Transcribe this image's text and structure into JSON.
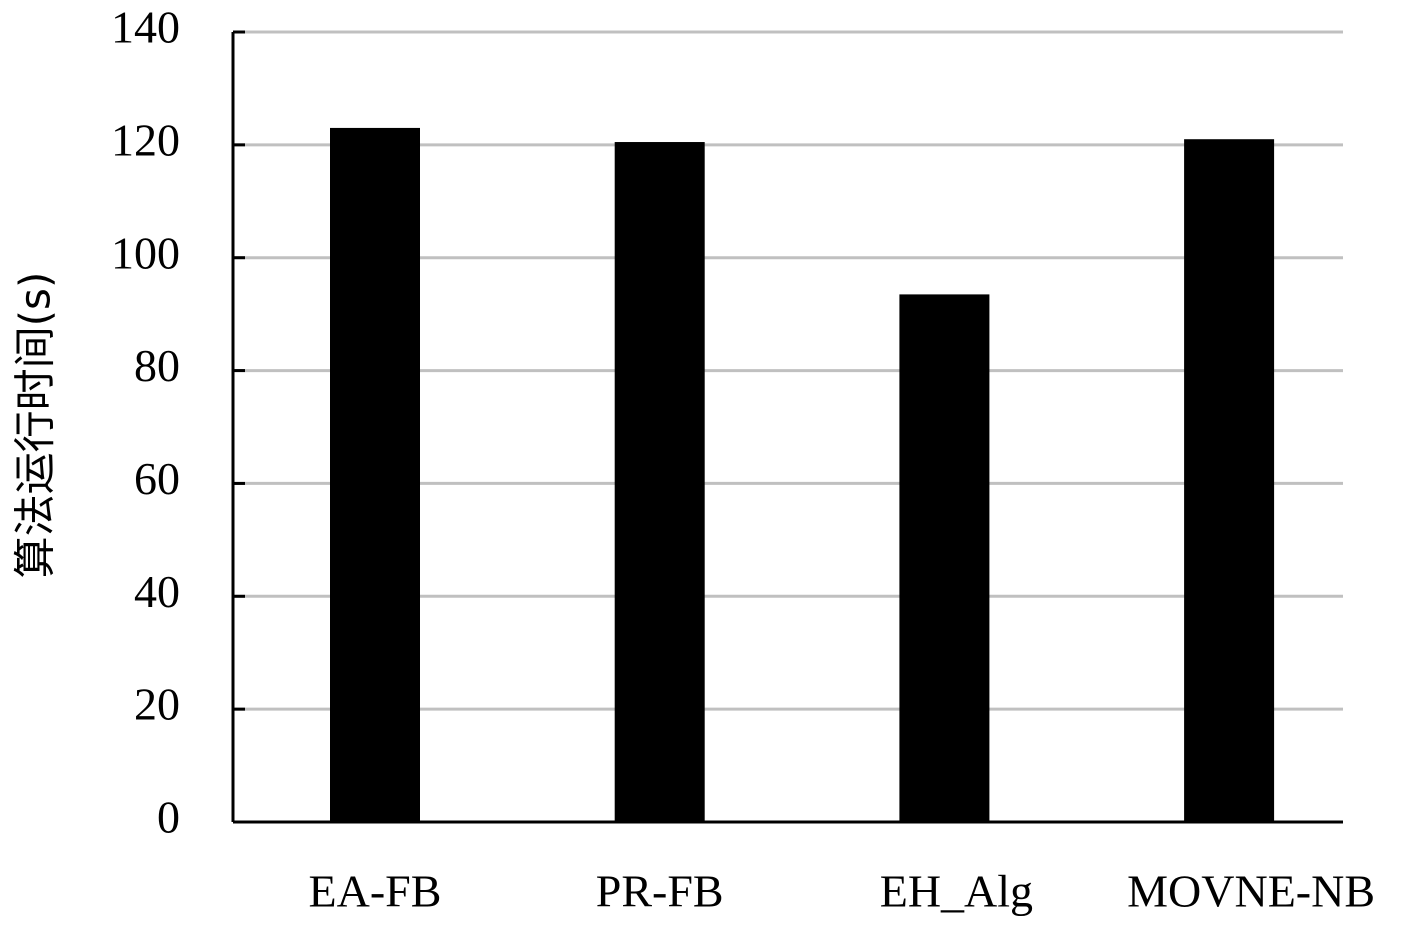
{
  "chart_data": {
    "type": "bar",
    "y_label": "算法运行时间(s)",
    "categories": [
      "EA-FB",
      "PR-FB",
      "EH_Alg",
      "MOVNE-NB"
    ],
    "values": [
      123,
      120.5,
      93.5,
      121
    ],
    "color": "#000000",
    "ylim": [
      0,
      140
    ],
    "yticks": [
      0,
      20,
      40,
      60,
      80,
      100,
      120,
      140
    ],
    "grid": true
  }
}
